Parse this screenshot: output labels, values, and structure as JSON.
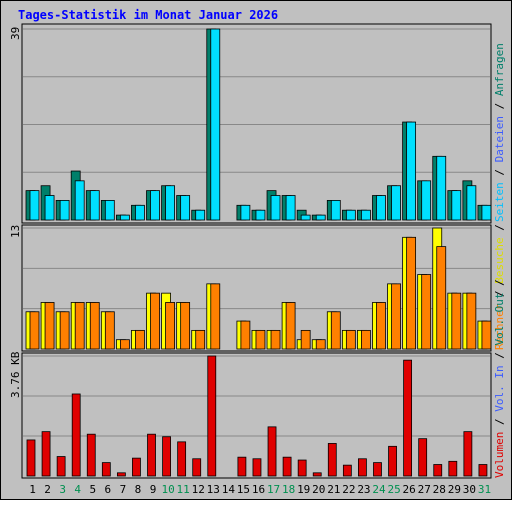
{
  "title": "Tages-Statistik im Monat Januar 2026",
  "colors": {
    "background": "#ffffff",
    "panel": "#c0c0c0",
    "grid": "#888888",
    "title": "#0000ff",
    "anfragen": "#007f6a",
    "dateien": "#00e0ff",
    "seiten": "#00c0ff",
    "besuche": "#ffff00",
    "rechner": "#ff8000",
    "vol": "#e00000",
    "vol_in": "#3b5bff",
    "vol_out": "#007f6a",
    "weekend": "#009050",
    "day_default": "#000000"
  },
  "legend": {
    "top": {
      "anfragen": "Anfragen",
      "dateien": "Dateien",
      "seiten": "Seiten",
      "sep": " / "
    },
    "middle": {
      "besuche": "Besuche",
      "rechner": "Rechner",
      "sep": " / "
    },
    "bottom": {
      "vol_out": "Vol. Out",
      "vol_in": "Vol. In",
      "volumen": "Volumen",
      "sep": " / "
    }
  },
  "chart_data": [
    {
      "type": "bar",
      "name": "top",
      "ymax_label": "39",
      "ylim": [
        0,
        39
      ],
      "categories": [
        1,
        2,
        3,
        4,
        5,
        6,
        7,
        8,
        9,
        10,
        11,
        12,
        13,
        14,
        15,
        16,
        17,
        18,
        19,
        20,
        21,
        22,
        23,
        24,
        25,
        26,
        27,
        28,
        29,
        30,
        31
      ],
      "series": [
        {
          "name": "Anfragen",
          "values": [
            6,
            7,
            4,
            10,
            6,
            4,
            1,
            3,
            6,
            7,
            5,
            2,
            39,
            0,
            3,
            2,
            6,
            5,
            2,
            1,
            4,
            2,
            2,
            5,
            7,
            20,
            8,
            13,
            6,
            8,
            3
          ]
        },
        {
          "name": "Dateien",
          "values": [
            6,
            5,
            4,
            8,
            6,
            4,
            1,
            3,
            6,
            7,
            5,
            2,
            39,
            0,
            3,
            2,
            5,
            5,
            1,
            1,
            4,
            2,
            2,
            5,
            7,
            20,
            8,
            13,
            6,
            7,
            3
          ]
        }
      ]
    },
    {
      "type": "bar",
      "name": "middle",
      "ymax_label": "13",
      "ylim": [
        0,
        13
      ],
      "categories": [
        1,
        2,
        3,
        4,
        5,
        6,
        7,
        8,
        9,
        10,
        11,
        12,
        13,
        14,
        15,
        16,
        17,
        18,
        19,
        20,
        21,
        22,
        23,
        24,
        25,
        26,
        27,
        28,
        29,
        30,
        31
      ],
      "series": [
        {
          "name": "Besuche",
          "values": [
            4,
            5,
            4,
            5,
            5,
            4,
            1,
            2,
            6,
            6,
            5,
            2,
            7,
            0,
            3,
            2,
            2,
            5,
            1,
            1,
            4,
            2,
            2,
            5,
            7,
            12,
            8,
            13,
            6,
            6,
            3
          ]
        },
        {
          "name": "Rechner",
          "values": [
            4,
            5,
            4,
            5,
            5,
            4,
            1,
            2,
            6,
            5,
            5,
            2,
            7,
            0,
            3,
            2,
            2,
            5,
            2,
            1,
            4,
            2,
            2,
            5,
            7,
            12,
            8,
            11,
            6,
            6,
            3
          ]
        }
      ]
    },
    {
      "type": "bar",
      "name": "bottom",
      "ymax_label": "3.76 KB",
      "ylim": [
        0,
        3.76
      ],
      "categories": [
        1,
        2,
        3,
        4,
        5,
        6,
        7,
        8,
        9,
        10,
        11,
        12,
        13,
        14,
        15,
        16,
        17,
        18,
        19,
        20,
        21,
        22,
        23,
        24,
        25,
        26,
        27,
        28,
        29,
        30,
        31
      ],
      "series": [
        {
          "name": "Volumen",
          "values": [
            1.13,
            1.39,
            0.61,
            2.57,
            1.31,
            0.42,
            0.1,
            0.56,
            1.31,
            1.23,
            1.07,
            0.54,
            3.76,
            0,
            0.59,
            0.54,
            1.54,
            0.59,
            0.5,
            0.1,
            1.02,
            0.34,
            0.54,
            0.42,
            0.93,
            3.63,
            1.17,
            0.36,
            0.46,
            1.39,
            0.36
          ]
        }
      ]
    }
  ],
  "days": {
    "labels": [
      "1",
      "2",
      "3",
      "4",
      "5",
      "6",
      "7",
      "8",
      "9",
      "10",
      "11",
      "12",
      "13",
      "14",
      "15",
      "16",
      "17",
      "18",
      "19",
      "20",
      "21",
      "22",
      "23",
      "24",
      "25",
      "26",
      "27",
      "28",
      "29",
      "30",
      "31"
    ],
    "weekend": [
      3,
      4,
      10,
      11,
      17,
      18,
      24,
      25,
      31
    ]
  }
}
